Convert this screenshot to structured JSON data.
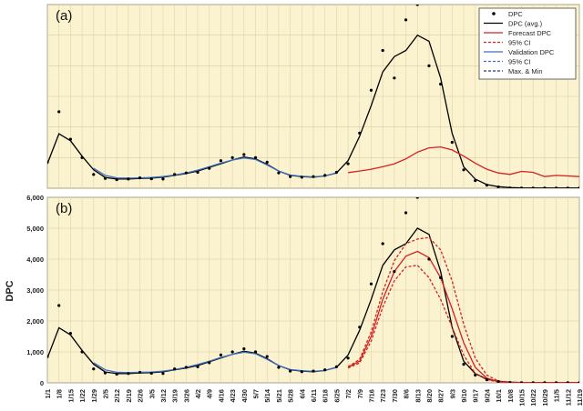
{
  "figure": {
    "ylabel": "DPC",
    "x_ticks": [
      "1/1",
      "1/8",
      "1/15",
      "1/22",
      "1/29",
      "2/5",
      "2/12",
      "2/19",
      "2/26",
      "3/5",
      "3/12",
      "3/19",
      "3/26",
      "4/2",
      "4/9",
      "4/16",
      "4/23",
      "4/30",
      "5/7",
      "5/14",
      "5/21",
      "5/28",
      "6/4",
      "6/11",
      "6/18",
      "6/25",
      "7/2",
      "7/9",
      "7/16",
      "7/23",
      "7/30",
      "8/6",
      "8/13",
      "8/20",
      "8/27",
      "9/3",
      "9/10",
      "9/17",
      "9/24",
      "10/1",
      "10/8",
      "10/15",
      "10/22",
      "10/29",
      "11/5",
      "11/12",
      "11/19"
    ],
    "legend": [
      {
        "label": "DPC",
        "style": "dots",
        "color": "#000000"
      },
      {
        "label": "DPC (avg.)",
        "style": "solid",
        "color": "#000000"
      },
      {
        "label": "Forecast DPC",
        "style": "solid",
        "color": "#d62020"
      },
      {
        "label": "95% CI",
        "style": "dashed",
        "color": "#d62020"
      },
      {
        "label": "Validation DPC",
        "style": "solid",
        "color": "#3a6fc4"
      },
      {
        "label": "95% CI",
        "style": "dashed",
        "color": "#3a6fc4"
      },
      {
        "label": "Max. & Min",
        "style": "dashed",
        "color": "#1f3a7a"
      }
    ]
  },
  "chart_data": [
    {
      "type": "line",
      "panel_label": "(a)",
      "ylabel": "DPC",
      "ylim": [
        0,
        6000
      ],
      "yticks": [
        0,
        1000,
        2000,
        3000,
        4000,
        5000,
        6000
      ],
      "grid": true,
      "legend_position": "top-right",
      "x": [
        "1/1",
        "1/8",
        "1/15",
        "1/22",
        "1/29",
        "2/5",
        "2/12",
        "2/19",
        "2/26",
        "3/5",
        "3/12",
        "3/19",
        "3/26",
        "4/2",
        "4/9",
        "4/16",
        "4/23",
        "4/30",
        "5/7",
        "5/14",
        "5/21",
        "5/28",
        "6/4",
        "6/11",
        "6/18",
        "6/25",
        "7/2",
        "7/9",
        "7/16",
        "7/23",
        "7/30",
        "8/6",
        "8/13",
        "8/20",
        "8/27",
        "9/3",
        "9/10",
        "9/17",
        "9/24",
        "10/1",
        "10/8",
        "10/15",
        "10/22",
        "10/29",
        "11/5",
        "11/12",
        "11/19"
      ],
      "series": [
        {
          "name": "DPC (avg.)",
          "color": "#000000",
          "values": [
            800,
            1780,
            1550,
            1050,
            600,
            350,
            300,
            300,
            320,
            330,
            360,
            420,
            480,
            560,
            680,
            800,
            920,
            1020,
            960,
            780,
            560,
            420,
            380,
            360,
            400,
            500,
            900,
            1700,
            2700,
            3800,
            4300,
            4500,
            5000,
            4800,
            3600,
            1800,
            700,
            300,
            120,
            50,
            20,
            10,
            5,
            5,
            5,
            5,
            5
          ]
        },
        {
          "name": "Validation DPC",
          "color": "#3a6fc4",
          "values": [
            null,
            null,
            null,
            null,
            650,
            420,
            340,
            330,
            340,
            350,
            380,
            430,
            500,
            590,
            700,
            820,
            920,
            990,
            940,
            760,
            560,
            430,
            390,
            370,
            400,
            490,
            null,
            null,
            null,
            null,
            null,
            null,
            null,
            null,
            null,
            null,
            null,
            null,
            null,
            null,
            null,
            null,
            null,
            null,
            null,
            null,
            null
          ]
        },
        {
          "name": "Forecast DPC",
          "color": "#d62020",
          "values": [
            null,
            null,
            null,
            null,
            null,
            null,
            null,
            null,
            null,
            null,
            null,
            null,
            null,
            null,
            null,
            null,
            null,
            null,
            null,
            null,
            null,
            null,
            null,
            null,
            null,
            null,
            510,
            560,
            620,
            700,
            800,
            960,
            1180,
            1320,
            1350,
            1250,
            1050,
            820,
            620,
            500,
            450,
            550,
            520,
            380,
            420,
            400,
            380
          ]
        }
      ],
      "points": {
        "name": "DPC",
        "values": [
          850,
          2500,
          1600,
          1000,
          450,
          320,
          280,
          300,
          340,
          310,
          300,
          450,
          500,
          520,
          650,
          900,
          1000,
          1100,
          1000,
          850,
          500,
          380,
          360,
          380,
          420,
          520,
          800,
          1800,
          3200,
          4500,
          3600,
          5500,
          6000,
          4000,
          3400,
          1500,
          600,
          250,
          100,
          40,
          10,
          5,
          5,
          5,
          5,
          5,
          5
        ]
      }
    },
    {
      "type": "line",
      "panel_label": "(b)",
      "ylabel": "DPC",
      "ylim": [
        0,
        6000
      ],
      "yticks": [
        0,
        1000,
        2000,
        3000,
        4000,
        5000,
        6000
      ],
      "ytick_labels": [
        "0",
        "1,000",
        "2,000",
        "3,000",
        "4,000",
        "5,000",
        "6,000"
      ],
      "grid": true,
      "x": [
        "1/1",
        "1/8",
        "1/15",
        "1/22",
        "1/29",
        "2/5",
        "2/12",
        "2/19",
        "2/26",
        "3/5",
        "3/12",
        "3/19",
        "3/26",
        "4/2",
        "4/9",
        "4/16",
        "4/23",
        "4/30",
        "5/7",
        "5/14",
        "5/21",
        "5/28",
        "6/4",
        "6/11",
        "6/18",
        "6/25",
        "7/2",
        "7/9",
        "7/16",
        "7/23",
        "7/30",
        "8/6",
        "8/13",
        "8/20",
        "8/27",
        "9/3",
        "9/10",
        "9/17",
        "9/24",
        "10/1",
        "10/8",
        "10/15",
        "10/22",
        "10/29",
        "11/5",
        "11/12",
        "11/19"
      ],
      "series": [
        {
          "name": "DPC (avg.)",
          "color": "#000000",
          "values": [
            800,
            1780,
            1550,
            1050,
            600,
            350,
            300,
            300,
            320,
            330,
            360,
            420,
            480,
            560,
            680,
            800,
            920,
            1020,
            960,
            780,
            560,
            420,
            380,
            360,
            400,
            500,
            900,
            1700,
            2700,
            3800,
            4300,
            4500,
            5000,
            4800,
            3600,
            1800,
            700,
            300,
            120,
            50,
            20,
            10,
            5,
            5,
            5,
            5,
            5
          ]
        },
        {
          "name": "Validation DPC",
          "color": "#3a6fc4",
          "values": [
            null,
            null,
            null,
            null,
            650,
            420,
            340,
            330,
            340,
            350,
            380,
            430,
            500,
            590,
            700,
            820,
            920,
            990,
            940,
            760,
            560,
            430,
            390,
            370,
            400,
            490,
            null,
            null,
            null,
            null,
            null,
            null,
            null,
            null,
            null,
            null,
            null,
            null,
            null,
            null,
            null,
            null,
            null,
            null,
            null,
            null,
            null
          ]
        },
        {
          "name": "Forecast DPC",
          "color": "#d62020",
          "values": [
            null,
            null,
            null,
            null,
            null,
            null,
            null,
            null,
            null,
            null,
            null,
            null,
            null,
            null,
            null,
            null,
            null,
            null,
            null,
            null,
            null,
            null,
            null,
            null,
            null,
            null,
            500,
            700,
            1500,
            2700,
            3600,
            4100,
            4250,
            4050,
            3400,
            2400,
            1300,
            500,
            150,
            40,
            10,
            5,
            5,
            5,
            5,
            5,
            5
          ]
        },
        {
          "name": "95% CI (upper)",
          "color": "#d62020",
          "dashed": true,
          "values": [
            null,
            null,
            null,
            null,
            null,
            null,
            null,
            null,
            null,
            null,
            null,
            null,
            null,
            null,
            null,
            null,
            null,
            null,
            null,
            null,
            null,
            null,
            null,
            null,
            null,
            null,
            520,
            760,
            1650,
            2950,
            3950,
            4500,
            4650,
            4700,
            4300,
            3300,
            1900,
            800,
            250,
            60,
            15,
            5,
            5,
            5,
            5,
            5,
            5
          ]
        },
        {
          "name": "95% CI (lower)",
          "color": "#d62020",
          "dashed": true,
          "values": [
            null,
            null,
            null,
            null,
            null,
            null,
            null,
            null,
            null,
            null,
            null,
            null,
            null,
            null,
            null,
            null,
            null,
            null,
            null,
            null,
            null,
            null,
            null,
            null,
            null,
            null,
            480,
            640,
            1350,
            2450,
            3300,
            3750,
            3800,
            3400,
            2700,
            1800,
            900,
            300,
            100,
            30,
            5,
            5,
            5,
            5,
            5,
            5,
            5
          ]
        }
      ],
      "points": {
        "name": "DPC",
        "values": [
          850,
          2500,
          1600,
          1000,
          450,
          320,
          280,
          300,
          340,
          310,
          300,
          450,
          500,
          520,
          650,
          900,
          1000,
          1100,
          1000,
          850,
          500,
          380,
          360,
          380,
          420,
          520,
          800,
          1800,
          3200,
          4500,
          3600,
          5500,
          6000,
          4000,
          3400,
          1500,
          600,
          250,
          100,
          40,
          10,
          5,
          5,
          5,
          5,
          5,
          5
        ]
      }
    }
  ]
}
